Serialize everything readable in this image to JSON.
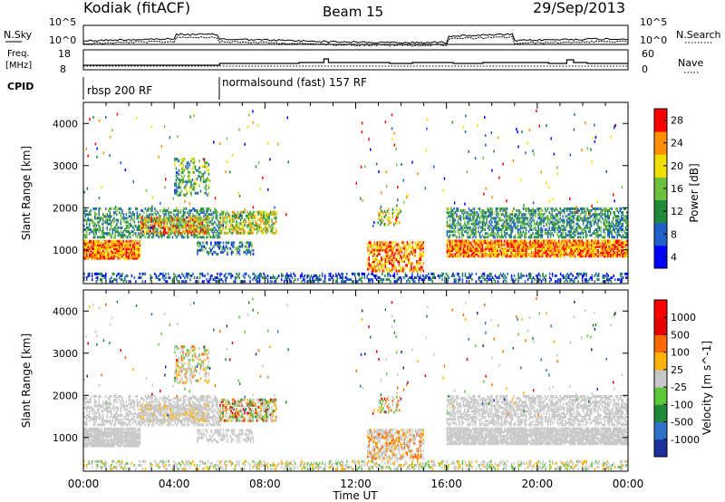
{
  "header": {
    "station": "Kodiak (fitACF)",
    "beam": "Beam 15",
    "date": "29/Sep/2013"
  },
  "top_panels": {
    "noise_left_label": "N.Sky",
    "noise_right_label": "N.Search",
    "noise_ticks": [
      "10^5",
      "10^0"
    ],
    "freq_left_label_1": "Freq.",
    "freq_left_label_2": "[MHz]",
    "freq_ticks": [
      "18",
      "8"
    ],
    "nave_right_label": "Nave",
    "nave_ticks": [
      "60",
      "0"
    ],
    "cpid_label": "CPID",
    "cpid_segments": [
      {
        "label": "rbsp 200 RF",
        "start_hour": 0
      },
      {
        "label": "normalsound (fast) 157 RF",
        "start_hour": 6
      }
    ]
  },
  "chart_data": [
    {
      "type": "heatmap",
      "title": "",
      "xlabel": "",
      "ylabel": "Slant Range [km]",
      "x_range_hours": [
        0,
        24
      ],
      "ylim": [
        200,
        4500
      ],
      "yticks": [
        1000,
        2000,
        3000,
        4000
      ],
      "colorbar": {
        "label": "Power [dB]",
        "ticks": [
          "4",
          "8",
          "12",
          "16",
          "20",
          "24",
          "28"
        ],
        "colors": [
          "#0000ff",
          "#2060c8",
          "#1f8a3c",
          "#70c040",
          "#f0e000",
          "#ff9000",
          "#ff0000"
        ]
      }
    },
    {
      "type": "heatmap",
      "title": "",
      "xlabel": "Time UT",
      "ylabel": "Slant Range [km]",
      "x_range_hours": [
        0,
        24
      ],
      "ylim": [
        200,
        4500
      ],
      "yticks": [
        1000,
        2000,
        3000,
        4000
      ],
      "xtick_labels": [
        "00:00",
        "04:00",
        "08:00",
        "12:00",
        "16:00",
        "20:00",
        "00:00"
      ],
      "colorbar": {
        "label": "Velocity [m s^-1]",
        "ticks": [
          "1000",
          "500",
          "100",
          "25",
          "-25",
          "-100",
          "-500",
          "-1000"
        ],
        "colors": [
          "#1c2f9b",
          "#2f73c8",
          "#1f8a3c",
          "#5ec83a",
          "#c8c8c8",
          "#ffb300",
          "#ff6a00",
          "#e60000",
          "#ff0000"
        ]
      }
    }
  ]
}
